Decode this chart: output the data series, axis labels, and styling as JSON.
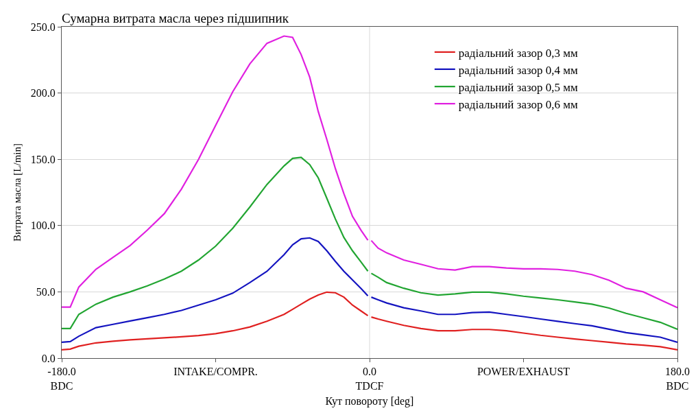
{
  "chart_data": {
    "type": "line",
    "title": "Сумарна витрата масла через підшипник",
    "xlabel": "Кут повороту [deg]",
    "ylabel": "Витрата масла [L/min]",
    "x": [
      -180,
      -175,
      -170,
      -160,
      -150,
      -140,
      -130,
      -120,
      -110,
      -100,
      -90,
      -80,
      -70,
      -60,
      -50,
      -45,
      -40,
      -35,
      -30,
      -25,
      -20,
      -15,
      -10,
      -5,
      -1,
      0,
      1,
      5,
      10,
      20,
      30,
      40,
      50,
      60,
      70,
      80,
      90,
      100,
      110,
      120,
      130,
      140,
      150,
      160,
      170,
      180
    ],
    "series": [
      {
        "name": "радіальний зазор 0,3 мм",
        "color": "#e02020",
        "values": [
          6.3,
          6.8,
          9,
          11.5,
          12.7,
          13.8,
          14.6,
          15.3,
          16.1,
          17,
          18.4,
          20.6,
          23.5,
          27.8,
          33,
          36.8,
          40.7,
          44.5,
          47.6,
          49.8,
          49.3,
          46,
          40,
          35.6,
          32,
          null,
          31,
          29.5,
          27.8,
          24.7,
          22.3,
          20.6,
          20.6,
          21.6,
          21.6,
          20.6,
          18.9,
          17.2,
          15.8,
          14.4,
          13.2,
          12,
          10.7,
          9.8,
          8.6,
          6.3
        ]
      },
      {
        "name": "радіальний зазор 0,4 мм",
        "color": "#1414c0",
        "values": [
          12,
          12.5,
          16.5,
          23,
          25.5,
          28,
          30.5,
          33,
          36,
          40,
          44,
          49,
          57,
          65.5,
          78,
          85.5,
          90,
          90.7,
          88,
          81,
          73,
          65.5,
          59,
          52.5,
          47,
          null,
          46,
          44,
          41.6,
          38,
          35.6,
          33,
          33,
          34.4,
          34.7,
          33,
          31.3,
          29.5,
          27.8,
          26,
          24.4,
          21.8,
          19.2,
          17.5,
          15.8,
          12
        ]
      },
      {
        "name": "радіальний зазор 0,5 мм",
        "color": "#22a532",
        "values": [
          22.3,
          22.3,
          33,
          40.7,
          46,
          50,
          54.5,
          59.6,
          65.6,
          74,
          84.5,
          98,
          114,
          131,
          145,
          150.7,
          151.5,
          146,
          136,
          120.6,
          105,
          91,
          81,
          72.5,
          65.6,
          null,
          64,
          61,
          57,
          52.7,
          49.3,
          47.6,
          48.5,
          49.8,
          49.8,
          48.5,
          46.7,
          45.4,
          44,
          42.4,
          40.7,
          37.8,
          33.8,
          30.4,
          27,
          21.8
        ]
      },
      {
        "name": "радіальний зазор 0,6 мм",
        "color": "#e020e0",
        "values": [
          38.5,
          38.5,
          53.6,
          67,
          76,
          85,
          96.5,
          109,
          127.5,
          150,
          175.6,
          201,
          222,
          237.5,
          243,
          242,
          229,
          212,
          186,
          165,
          143,
          124,
          107,
          96.5,
          89,
          null,
          88.7,
          83,
          79.4,
          74,
          70.8,
          67.4,
          66.5,
          69,
          69,
          68,
          67.4,
          67.4,
          66.9,
          65.6,
          63,
          58.8,
          52.7,
          50,
          44,
          38
        ]
      }
    ],
    "xlim": [
      -180,
      180
    ],
    "xticks": [
      {
        "value": -180,
        "label": "-180.0\nBDC"
      },
      {
        "value": -90,
        "label": "INTAKE/COMPR."
      },
      {
        "value": 0,
        "label": "0.0\nTDCF"
      },
      {
        "value": 90,
        "label": "POWER/EXHAUST"
      },
      {
        "value": 180,
        "label": "180.0\nBDC"
      }
    ],
    "ylim": [
      0,
      250
    ],
    "yticks": [
      {
        "value": 0,
        "label": "0.0"
      },
      {
        "value": 50,
        "label": "50.0"
      },
      {
        "value": 100,
        "label": "100.0"
      },
      {
        "value": 150,
        "label": "150.0"
      },
      {
        "value": 200,
        "label": "200.0"
      },
      {
        "value": 250,
        "label": "250.0"
      }
    ],
    "ref_lines": [
      {
        "axis": "x",
        "value": 0,
        "color": "#d8d8d8"
      }
    ],
    "grid": "y",
    "legend": "top right",
    "marker": "none",
    "line_style": "solid"
  }
}
